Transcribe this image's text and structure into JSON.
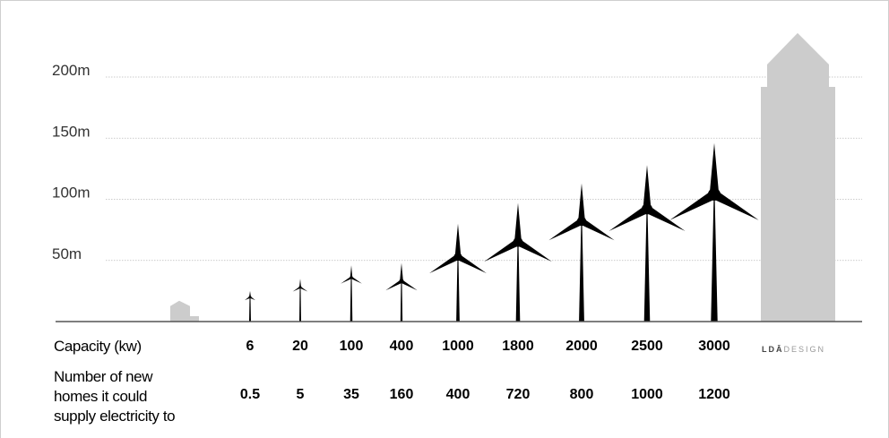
{
  "y_axis": {
    "unit": "m",
    "ticks": [
      {
        "value": 50,
        "label": "50m"
      },
      {
        "value": 100,
        "label": "100m"
      },
      {
        "value": 150,
        "label": "150m"
      },
      {
        "value": 200,
        "label": "200m"
      }
    ]
  },
  "rows": {
    "capacity_label": "Capacity (kw)",
    "homes_label_lines": [
      "Number of new",
      "homes it could",
      "supply electricity to"
    ]
  },
  "logo": {
    "text_bold": "LDĀ",
    "text_light": "DESIGN"
  },
  "chart_data": {
    "type": "table",
    "ylim": [
      0,
      240
    ],
    "turbines": [
      {
        "capacity_kw": "6",
        "homes": "0.5",
        "hub_height_m": 20,
        "blade_m": 5
      },
      {
        "capacity_kw": "20",
        "homes": "5",
        "hub_height_m": 28,
        "blade_m": 7
      },
      {
        "capacity_kw": "100",
        "homes": "35",
        "hub_height_m": 36,
        "blade_m": 10
      },
      {
        "capacity_kw": "400",
        "homes": "160",
        "hub_height_m": 33,
        "blade_m": 15
      },
      {
        "capacity_kw": "1000",
        "homes": "400",
        "hub_height_m": 53,
        "blade_m": 27
      },
      {
        "capacity_kw": "1800",
        "homes": "720",
        "hub_height_m": 65,
        "blade_m": 32
      },
      {
        "capacity_kw": "2000",
        "homes": "800",
        "hub_height_m": 82,
        "blade_m": 31
      },
      {
        "capacity_kw": "2500",
        "homes": "1000",
        "hub_height_m": 92,
        "blade_m": 36
      },
      {
        "capacity_kw": "3000",
        "homes": "1200",
        "hub_height_m": 104,
        "blade_m": 42
      }
    ],
    "reference_house_height_m": 17,
    "reference_building_height_m": 236
  },
  "colors": {
    "turbine": "#000000",
    "reference": "#cccccc",
    "grid": "#bbbbbb",
    "axis": "#555555"
  }
}
